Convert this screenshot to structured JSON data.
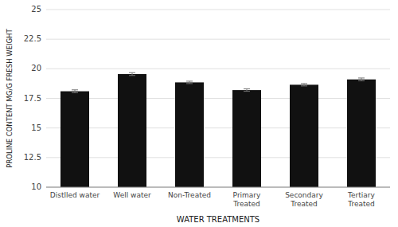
{
  "chart_data": {
    "type": "bar",
    "categories": [
      "Distlled water",
      "Well water",
      "Non-Treated",
      "Primary\nTreated",
      "Secondary\nTreated",
      "Tertiary\nTreated"
    ],
    "values": [
      18.1,
      19.55,
      18.85,
      18.2,
      18.65,
      19.1
    ],
    "errors": [
      0.12,
      0.12,
      0.1,
      0.1,
      0.1,
      0.12
    ],
    "color": "#111111",
    "xlabel": "WATER TREATMENTS",
    "ylabel": "PROLINE CONTENT MG/G FRESH WEIGHT",
    "ylim": [
      10,
      25
    ],
    "yticks": [
      10,
      12.5,
      15,
      17.5,
      20,
      22.5,
      25
    ],
    "grid": true
  }
}
